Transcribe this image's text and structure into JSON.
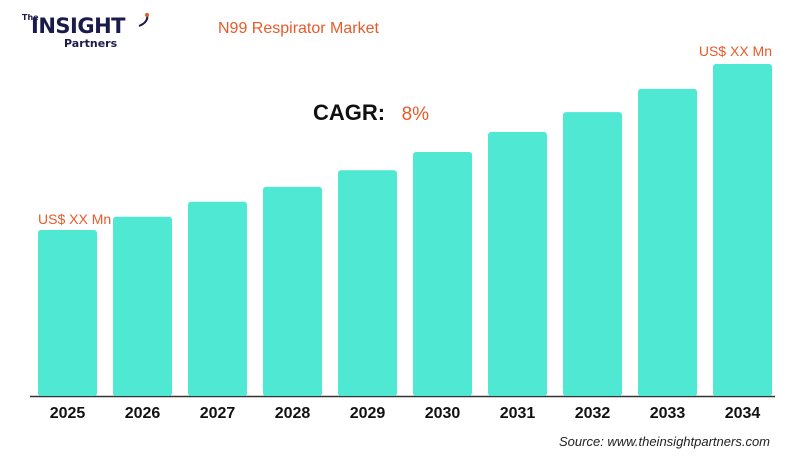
{
  "brand": {
    "the": "The",
    "name": "INSIGHT",
    "sub": "Partners"
  },
  "chart_data": {
    "type": "bar",
    "title": "N99 Respirator Market",
    "categories": [
      "2025",
      "2026",
      "2027",
      "2028",
      "2029",
      "2030",
      "2031",
      "2032",
      "2033",
      "2034"
    ],
    "values": [
      1.0,
      1.08,
      1.17,
      1.26,
      1.36,
      1.47,
      1.59,
      1.71,
      1.85,
      2.0
    ],
    "annotations": {
      "first": "US$ XX Mn",
      "last": "US$ XX Mn"
    },
    "cagr_label": "CAGR:",
    "cagr_value": "8%",
    "source": "Source: www.theinsightpartners.com",
    "colors": {
      "bar": "#4ee8d3",
      "accent": "#e85a2a",
      "axis": "#333333"
    },
    "grid": false,
    "legend": "none"
  }
}
